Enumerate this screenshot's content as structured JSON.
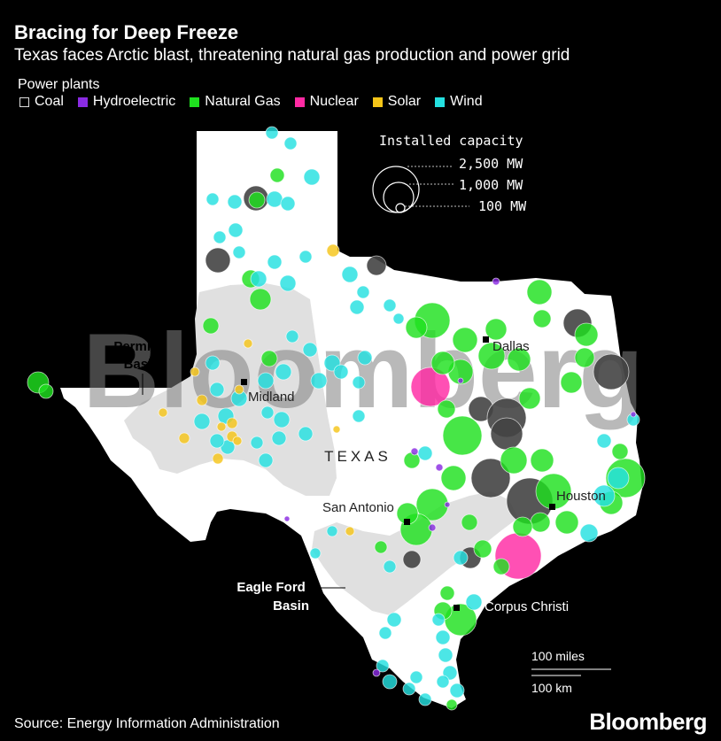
{
  "header": {
    "title": "Bracing for Deep Freeze",
    "subtitle": "Texas faces Arctic blast, threatening natural gas production and power grid"
  },
  "legend": {
    "title": "Power plants",
    "items": [
      {
        "label": "Coal",
        "color": "#000000",
        "border": "#dddddd"
      },
      {
        "label": "Hydroelectric",
        "color": "#8a2be2"
      },
      {
        "label": "Natural Gas",
        "color": "#1fe01f"
      },
      {
        "label": "Nuclear",
        "color": "#ff2aa3"
      },
      {
        "label": "Solar",
        "color": "#f5c518"
      },
      {
        "label": "Wind",
        "color": "#24e0e0"
      }
    ]
  },
  "size_legend": {
    "title": "Installed capacity",
    "items": [
      {
        "label": "2,500 MW",
        "mw": 2500
      },
      {
        "label": "1,000 MW",
        "mw": 1000
      },
      {
        "label": "100 MW",
        "mw": 100
      }
    ]
  },
  "map_labels": {
    "state": "TEXAS",
    "cities": [
      "Dallas",
      "Midland",
      "San Antonio",
      "Houston",
      "Corpus Christi"
    ],
    "basins": [
      {
        "line1": "Permian",
        "line2": "Basin"
      },
      {
        "line1": "Eagle Ford",
        "line2": "Basin"
      }
    ]
  },
  "scale_bar": {
    "miles": "100 miles",
    "km": "100 km"
  },
  "watermark": "Bloomberg",
  "source": "Source: Energy Information Administration",
  "brand": "Bloomberg",
  "colors": {
    "state_fill": "#ffffff",
    "basin_fill": "#e0e0e0",
    "coal_fill": "#444444"
  }
}
